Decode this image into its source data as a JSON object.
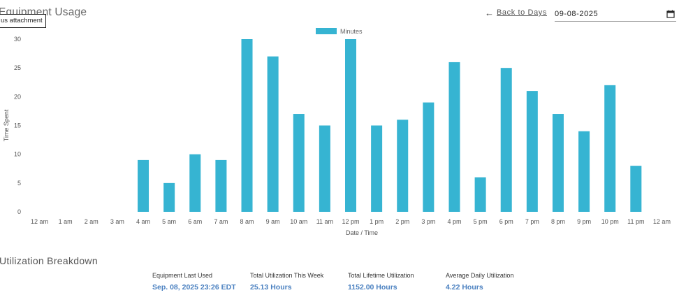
{
  "page": {
    "title": "Equipment Usage",
    "tooltip": "us attachment",
    "back_label": "Back to Days",
    "date_value": "09-08-2025"
  },
  "chart_data": {
    "type": "bar",
    "legend": "Minutes",
    "legend_position": "top-center",
    "color": "#36b4d2",
    "xlabel": "Date / Time",
    "ylabel": "Time Spent",
    "ylim": [
      0,
      30
    ],
    "yticks": [
      0,
      5,
      10,
      15,
      20,
      25,
      30
    ],
    "categories": [
      "12 am",
      "1 am",
      "2 am",
      "3 am",
      "4 am",
      "5 am",
      "6 am",
      "7 am",
      "8 am",
      "9 am",
      "10 am",
      "11 am",
      "12 pm",
      "1 pm",
      "2 pm",
      "3 pm",
      "4 pm",
      "5 pm",
      "6 pm",
      "7 pm",
      "8 pm",
      "9 pm",
      "10 pm",
      "11 pm",
      "12 am"
    ],
    "values": [
      0,
      0,
      0,
      0,
      9,
      5,
      10,
      9,
      30,
      27,
      17,
      15,
      30,
      15,
      16,
      19,
      26,
      6,
      25,
      21,
      17,
      14,
      22,
      8,
      0
    ]
  },
  "breakdown": {
    "title": "Utilization Breakdown",
    "stats": [
      {
        "label": "Equipment Last Used",
        "value": "Sep. 08, 2025 23:26 EDT"
      },
      {
        "label": "Total Utilization This Week",
        "value": "25.13 Hours"
      },
      {
        "label": "Total Lifetime Utilization",
        "value": "1152.00 Hours"
      },
      {
        "label": "Average Daily Utilization",
        "value": "4.22 Hours"
      }
    ]
  }
}
